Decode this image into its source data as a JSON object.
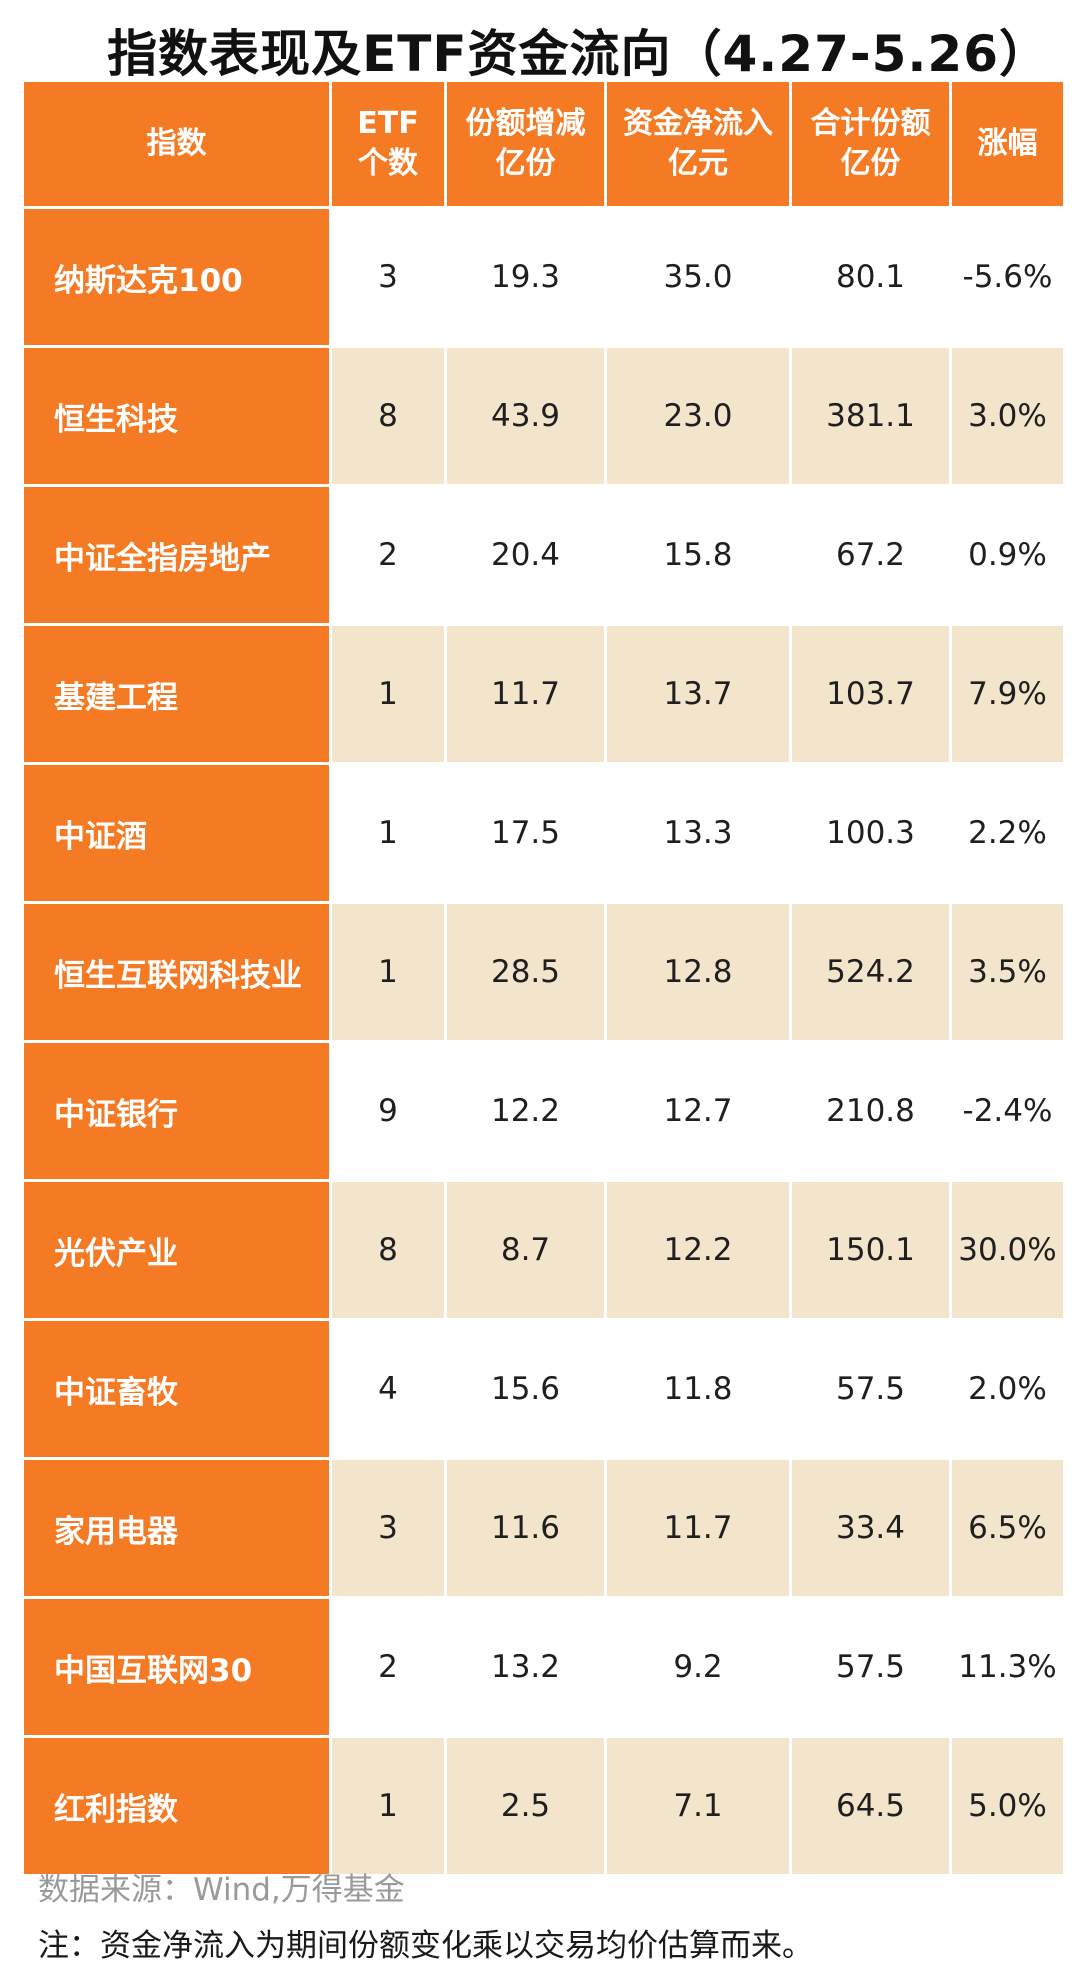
{
  "title": "指数表现及ETF资金流向（4.27-5.26）",
  "headers": [
    "指数",
    "ETF\n个数",
    "份额增减\n亿份",
    "资金净流入\n亿元",
    "合计份额\n亿份",
    "涨幅"
  ],
  "colors": {
    "header_bg": "#f57a24",
    "stripe_bg": "#f3e5cc"
  },
  "rows": [
    {
      "index": "纳斯达克100",
      "etf_count": "3",
      "share_change": "19.3",
      "net_inflow": "35.0",
      "total_shares": "80.1",
      "change_pct": "-5.6%"
    },
    {
      "index": "恒生科技",
      "etf_count": "8",
      "share_change": "43.9",
      "net_inflow": "23.0",
      "total_shares": "381.1",
      "change_pct": "3.0%"
    },
    {
      "index": "中证全指房地产",
      "etf_count": "2",
      "share_change": "20.4",
      "net_inflow": "15.8",
      "total_shares": "67.2",
      "change_pct": "0.9%"
    },
    {
      "index": "基建工程",
      "etf_count": "1",
      "share_change": "11.7",
      "net_inflow": "13.7",
      "total_shares": "103.7",
      "change_pct": "7.9%"
    },
    {
      "index": "中证酒",
      "etf_count": "1",
      "share_change": "17.5",
      "net_inflow": "13.3",
      "total_shares": "100.3",
      "change_pct": "2.2%"
    },
    {
      "index": "恒生互联网科技业",
      "etf_count": "1",
      "share_change": "28.5",
      "net_inflow": "12.8",
      "total_shares": "524.2",
      "change_pct": "3.5%"
    },
    {
      "index": "中证银行",
      "etf_count": "9",
      "share_change": "12.2",
      "net_inflow": "12.7",
      "total_shares": "210.8",
      "change_pct": "-2.4%"
    },
    {
      "index": "光伏产业",
      "etf_count": "8",
      "share_change": "8.7",
      "net_inflow": "12.2",
      "total_shares": "150.1",
      "change_pct": "30.0%"
    },
    {
      "index": "中证畜牧",
      "etf_count": "4",
      "share_change": "15.6",
      "net_inflow": "11.8",
      "total_shares": "57.5",
      "change_pct": "2.0%"
    },
    {
      "index": "家用电器",
      "etf_count": "3",
      "share_change": "11.6",
      "net_inflow": "11.7",
      "total_shares": "33.4",
      "change_pct": "6.5%"
    },
    {
      "index": "中国互联网30",
      "etf_count": "2",
      "share_change": "13.2",
      "net_inflow": "9.2",
      "total_shares": "57.5",
      "change_pct": "11.3%"
    },
    {
      "index": "红利指数",
      "etf_count": "1",
      "share_change": "2.5",
      "net_inflow": "7.1",
      "total_shares": "64.5",
      "change_pct": "5.0%"
    }
  ],
  "source": "数据来源：Wind,万得基金",
  "note": "注：资金净流入为期间份额变化乘以交易均价估算而来。"
}
